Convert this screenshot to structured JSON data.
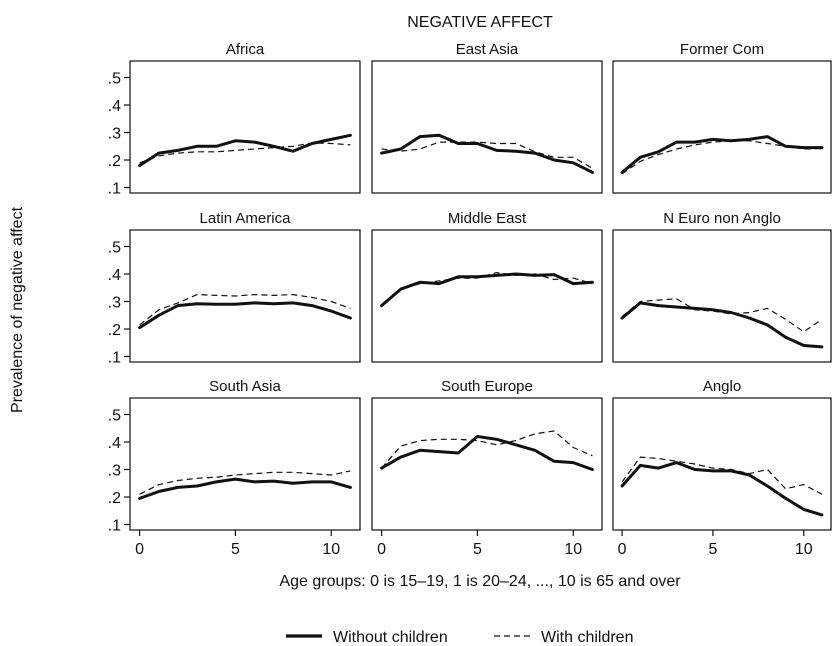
{
  "chart_data": {
    "type": "line",
    "title": "NEGATIVE AFFECT",
    "xlabel": "Age groups: 0 is 15–19, 1 is 20–24, ..., 10 is 65 and over",
    "ylabel": "Prevalence of negative affect",
    "xlim": [
      -0.5,
      11.5
    ],
    "ylim": [
      0.08,
      0.56
    ],
    "x_ticks": [
      0,
      5,
      10
    ],
    "x_tick_labels": [
      "0",
      "5",
      "10"
    ],
    "y_ticks": [
      0.5,
      0.4,
      0.3,
      0.2,
      0.1
    ],
    "y_tick_labels": [
      ".5",
      ".4",
      ".3",
      ".2",
      ".1"
    ],
    "grid": false,
    "legend": {
      "position": "bottom",
      "entries": [
        {
          "label": "Without children",
          "style": "solid-thick"
        },
        {
          "label": "With children",
          "style": "dashed-thin"
        }
      ]
    },
    "x": [
      0,
      1,
      2,
      3,
      4,
      5,
      6,
      7,
      8,
      9,
      10,
      11
    ],
    "panels": [
      {
        "title": "Africa",
        "without": [
          0.18,
          0.225,
          0.235,
          0.25,
          0.25,
          0.27,
          0.265,
          0.25,
          0.232,
          0.26,
          0.275,
          0.29
        ],
        "with": [
          0.19,
          0.215,
          0.225,
          0.23,
          0.23,
          0.235,
          0.24,
          0.245,
          0.25,
          0.262,
          0.26,
          0.255
        ]
      },
      {
        "title": "East Asia",
        "without": [
          0.225,
          0.24,
          0.285,
          0.29,
          0.26,
          0.26,
          0.235,
          0.232,
          0.225,
          0.2,
          0.19,
          0.155
        ],
        "with": [
          0.24,
          0.232,
          0.24,
          0.265,
          0.265,
          0.265,
          0.26,
          0.26,
          0.23,
          0.21,
          0.21,
          0.17
        ]
      },
      {
        "title": "Former Com",
        "without": [
          0.155,
          0.21,
          0.23,
          0.265,
          0.265,
          0.275,
          0.27,
          0.275,
          0.285,
          0.25,
          0.245,
          0.245
        ],
        "with": [
          0.15,
          0.195,
          0.22,
          0.24,
          0.255,
          0.265,
          0.27,
          0.27,
          0.26,
          0.25,
          0.24,
          0.242
        ]
      },
      {
        "title": "Latin America",
        "without": [
          0.205,
          0.25,
          0.285,
          0.292,
          0.29,
          0.29,
          0.295,
          0.292,
          0.295,
          0.285,
          0.265,
          0.24
        ],
        "with": [
          0.215,
          0.27,
          0.295,
          0.325,
          0.322,
          0.32,
          0.325,
          0.322,
          0.325,
          0.315,
          0.3,
          0.275
        ]
      },
      {
        "title": "Middle East",
        "without": [
          0.285,
          0.345,
          0.37,
          0.365,
          0.39,
          0.39,
          0.395,
          0.4,
          0.395,
          0.398,
          0.365,
          0.37
        ],
        "with": [
          0.285,
          0.345,
          0.365,
          0.375,
          0.385,
          0.385,
          0.405,
          0.395,
          0.4,
          0.38,
          0.385,
          0.365
        ]
      },
      {
        "title": "N Euro non Anglo",
        "without": [
          0.24,
          0.295,
          0.285,
          0.28,
          0.275,
          0.27,
          0.26,
          0.24,
          0.215,
          0.17,
          0.14,
          0.135
        ],
        "with": [
          0.245,
          0.3,
          0.305,
          0.31,
          0.27,
          0.265,
          0.255,
          0.26,
          0.275,
          0.235,
          0.19,
          0.235
        ]
      },
      {
        "title": "South Asia",
        "without": [
          0.195,
          0.22,
          0.235,
          0.24,
          0.255,
          0.265,
          0.255,
          0.258,
          0.25,
          0.255,
          0.255,
          0.235
        ],
        "with": [
          0.21,
          0.245,
          0.26,
          0.268,
          0.272,
          0.28,
          0.285,
          0.29,
          0.29,
          0.285,
          0.28,
          0.295
        ]
      },
      {
        "title": "South Europe",
        "without": [
          0.305,
          0.345,
          0.37,
          0.365,
          0.36,
          0.42,
          0.41,
          0.39,
          0.37,
          0.33,
          0.325,
          0.3
        ],
        "with": [
          0.305,
          0.385,
          0.405,
          0.41,
          0.41,
          0.405,
          0.39,
          0.405,
          0.43,
          0.44,
          0.38,
          0.35
        ]
      },
      {
        "title": "Anglo",
        "without": [
          0.24,
          0.315,
          0.305,
          0.325,
          0.3,
          0.295,
          0.295,
          0.28,
          0.24,
          0.195,
          0.155,
          0.135
        ],
        "with": [
          0.255,
          0.345,
          0.34,
          0.33,
          0.32,
          0.305,
          0.3,
          0.285,
          0.3,
          0.23,
          0.245,
          0.21
        ]
      }
    ]
  }
}
